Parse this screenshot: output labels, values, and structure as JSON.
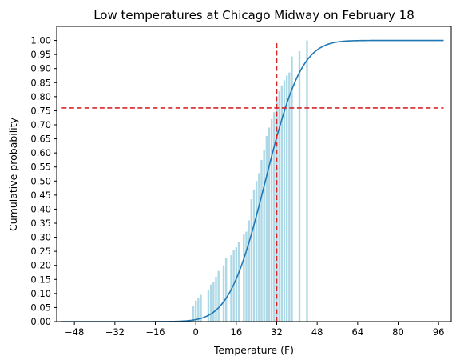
{
  "chart_data": {
    "type": "bar",
    "title": "Low temperatures at Chicago Midway on February 18",
    "xlabel": "Temperature (F)",
    "ylabel": "Cumulative probability",
    "xlim": [
      -55,
      101
    ],
    "ylim": [
      0,
      1.05
    ],
    "xticks": [
      -48,
      -32,
      -16,
      0,
      16,
      32,
      48,
      64,
      80,
      96
    ],
    "xtick_labels": [
      "−48",
      "−32",
      "−16",
      "0",
      "16",
      "32",
      "48",
      "64",
      "80",
      "96"
    ],
    "yticks": [
      0,
      0.05,
      0.1,
      0.15,
      0.2,
      0.25,
      0.3,
      0.35,
      0.4,
      0.45,
      0.5,
      0.55,
      0.6,
      0.65,
      0.7,
      0.75,
      0.8,
      0.85,
      0.9,
      0.95,
      1.0
    ],
    "ytick_labels": [
      "0.00",
      "0.05",
      "0.10",
      "0.15",
      "0.20",
      "0.25",
      "0.30",
      "0.35",
      "0.40",
      "0.45",
      "0.50",
      "0.55",
      "0.60",
      "0.65",
      "0.70",
      "0.75",
      "0.80",
      "0.85",
      "0.90",
      "0.95",
      "1.00"
    ],
    "grid": false,
    "bar_color": "#add8e6",
    "curve_color": "#1f77b4",
    "reference_line_color": "#d62728",
    "empirical_cdf_bars": [
      {
        "x": -1,
        "y": 0.057
      },
      {
        "x": 0,
        "y": 0.075
      },
      {
        "x": 1,
        "y": 0.085
      },
      {
        "x": 2,
        "y": 0.095
      },
      {
        "x": 5,
        "y": 0.113
      },
      {
        "x": 6,
        "y": 0.132
      },
      {
        "x": 7,
        "y": 0.14
      },
      {
        "x": 8,
        "y": 0.16
      },
      {
        "x": 9,
        "y": 0.18
      },
      {
        "x": 11,
        "y": 0.2
      },
      {
        "x": 12,
        "y": 0.226
      },
      {
        "x": 14,
        "y": 0.236
      },
      {
        "x": 15,
        "y": 0.255
      },
      {
        "x": 16,
        "y": 0.264
      },
      {
        "x": 17,
        "y": 0.283
      },
      {
        "x": 19,
        "y": 0.31
      },
      {
        "x": 20,
        "y": 0.32
      },
      {
        "x": 21,
        "y": 0.36
      },
      {
        "x": 22,
        "y": 0.435
      },
      {
        "x": 23,
        "y": 0.47
      },
      {
        "x": 24,
        "y": 0.5
      },
      {
        "x": 25,
        "y": 0.528
      },
      {
        "x": 26,
        "y": 0.575
      },
      {
        "x": 27,
        "y": 0.612
      },
      {
        "x": 28,
        "y": 0.66
      },
      {
        "x": 29,
        "y": 0.69
      },
      {
        "x": 30,
        "y": 0.72
      },
      {
        "x": 31,
        "y": 0.745
      },
      {
        "x": 32,
        "y": 0.78
      },
      {
        "x": 33,
        "y": 0.82
      },
      {
        "x": 34,
        "y": 0.84
      },
      {
        "x": 35,
        "y": 0.858
      },
      {
        "x": 36,
        "y": 0.875
      },
      {
        "x": 37,
        "y": 0.886
      },
      {
        "x": 38,
        "y": 0.943
      },
      {
        "x": 41,
        "y": 0.962
      },
      {
        "x": 44,
        "y": 1.0
      }
    ],
    "normal_cdf_curve": {
      "mean": 27.5,
      "std": 11.2,
      "x_start": -53,
      "x_end": 98
    },
    "reference_lines": {
      "vertical_x": 32,
      "vertical_y_max": 1.0,
      "horizontal_y": 0.76
    }
  }
}
